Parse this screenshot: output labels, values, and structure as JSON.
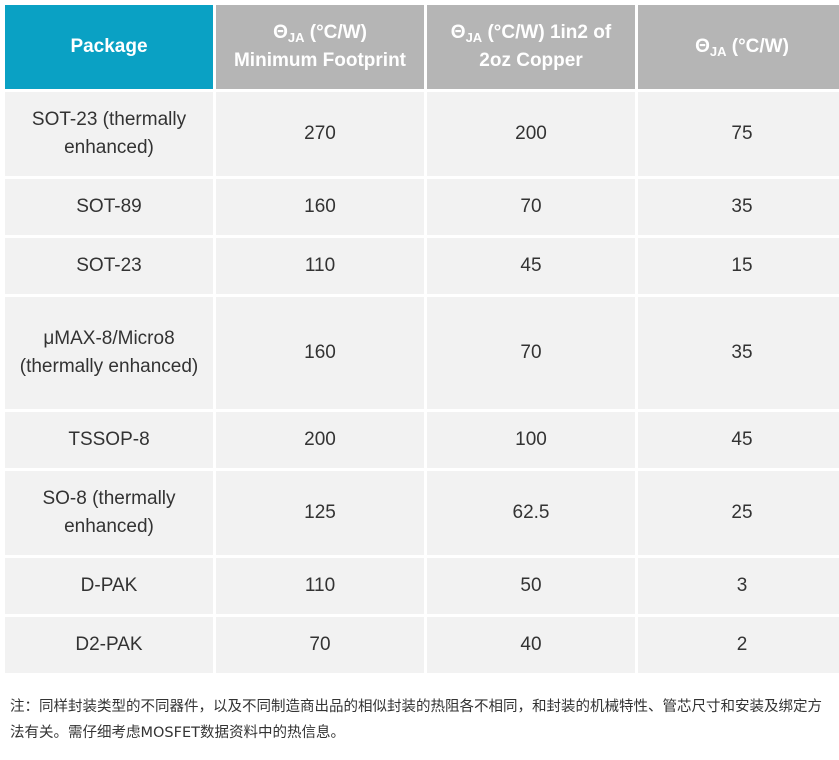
{
  "table": {
    "headers": [
      {
        "symbol": "Θ",
        "sub": "JA",
        "unit": " (°C/W)",
        "line2": "Minimum Footprint"
      },
      {
        "symbol": "Θ",
        "sub": "JA",
        "unit": " (°C/W) 1in2 of",
        "line2": "2oz Copper"
      },
      {
        "symbol": "Θ",
        "sub": "JA",
        "unit": " (°C/W)",
        "line2": ""
      }
    ],
    "package_header": "Package",
    "rows": [
      {
        "package": "SOT-23 (thermally enhanced)",
        "min_footprint": "270",
        "copper": "200",
        "theta": "75"
      },
      {
        "package": "SOT-89",
        "min_footprint": "160",
        "copper": "70",
        "theta": "35"
      },
      {
        "package": "SOT-23",
        "min_footprint": "110",
        "copper": "45",
        "theta": "15"
      },
      {
        "package": "μMAX-8/Micro8 (thermally enhanced)",
        "min_footprint": "160",
        "copper": "70",
        "theta": "35"
      },
      {
        "package": "TSSOP-8",
        "min_footprint": "200",
        "copper": "100",
        "theta": "45"
      },
      {
        "package": "SO-8 (thermally enhanced)",
        "min_footprint": "125",
        "copper": "62.5",
        "theta": "25"
      },
      {
        "package": "D-PAK",
        "min_footprint": "110",
        "copper": "50",
        "theta": "3"
      },
      {
        "package": "D2-PAK",
        "min_footprint": "70",
        "copper": "40",
        "theta": "2"
      }
    ]
  },
  "note": "注：同样封装类型的不同器件，以及不同制造商出品的相似封装的热阻各不相同，和封装的机械特性、管芯尺寸和安装及绑定方法有关。需仔细考虑MOSFET数据资料中的热信息。",
  "colors": {
    "header_accent": "#0aa1c4",
    "header_gray": "#b5b5b5",
    "cell_bg": "#f2f2f2"
  }
}
